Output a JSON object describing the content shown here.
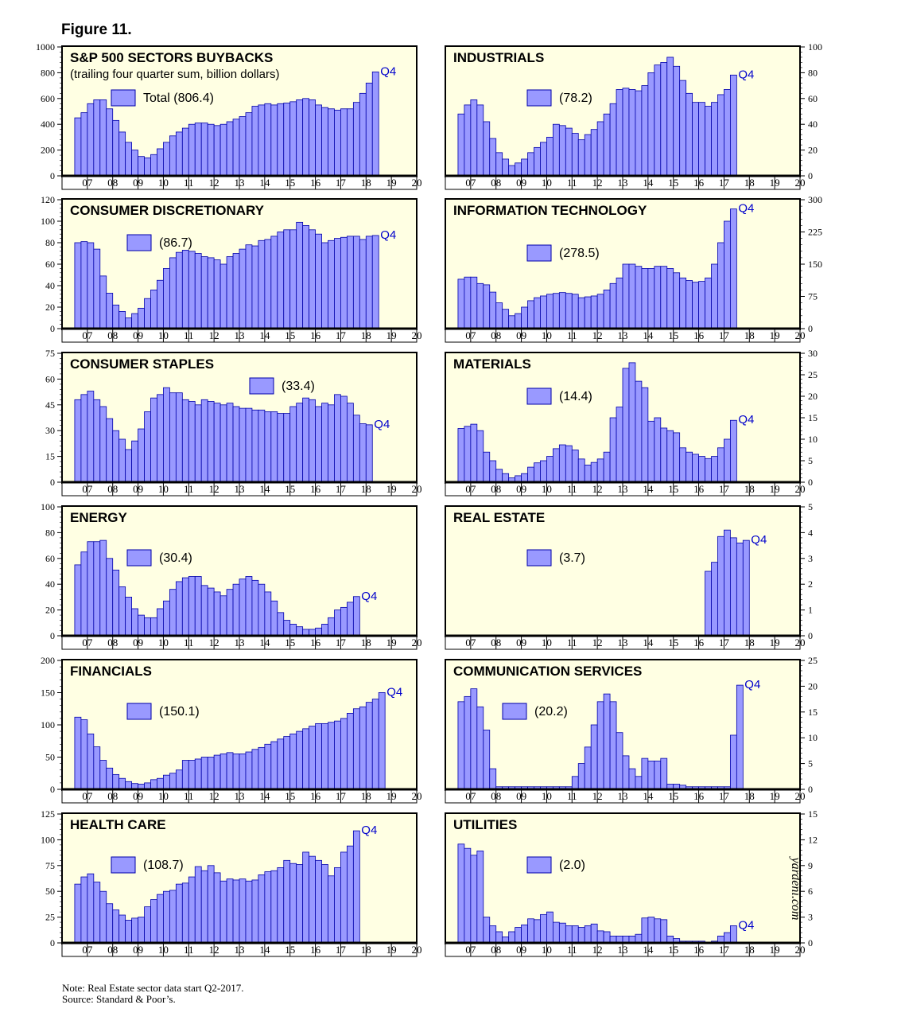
{
  "figure_label": "Figure 11.",
  "colors": {
    "panel_bg": "#ffffe3",
    "bar_fill": "#9999ff",
    "bar_stroke": "#0000aa",
    "q4_text": "#0000cc",
    "frame": "#000000"
  },
  "x_tick_labels": [
    "07",
    "08",
    "09",
    "10",
    "11",
    "12",
    "13",
    "14",
    "15",
    "16",
    "17",
    "18",
    "19",
    "20"
  ],
  "watermark": "yardeni.com",
  "chart_data": [
    {
      "type": "bar",
      "title": "S&P 500 SECTORS BUYBACKS",
      "subtitle": "(trailing four quarter sum, billion dollars)",
      "legend": "Total (806.4)",
      "annotation": "Q4",
      "axis_side": "left",
      "ylim": [
        0,
        1000
      ],
      "yticks": [
        0,
        200,
        400,
        600,
        800,
        1000
      ],
      "x_range": [
        "2006",
        "2020"
      ],
      "start": "2006Q1",
      "values": [
        0,
        0,
        450,
        490,
        560,
        590,
        590,
        520,
        430,
        340,
        260,
        200,
        150,
        140,
        165,
        210,
        260,
        310,
        340,
        370,
        400,
        410,
        410,
        400,
        390,
        400,
        420,
        440,
        460,
        490,
        540,
        550,
        560,
        550,
        560,
        565,
        575,
        590,
        600,
        590,
        550,
        530,
        520,
        510,
        520,
        520,
        570,
        640,
        720,
        806.4
      ]
    },
    {
      "type": "bar",
      "title": "INDUSTRIALS",
      "legend": "(78.2)",
      "annotation": "Q4",
      "axis_side": "right",
      "ylim": [
        0,
        100
      ],
      "yticks": [
        0,
        20,
        40,
        60,
        80,
        100
      ],
      "x_range": [
        "2006",
        "2020"
      ],
      "start": "2006Q1",
      "values": [
        0,
        0,
        48,
        55,
        59,
        55,
        42,
        29,
        18,
        13,
        8,
        10,
        13,
        18,
        22,
        26,
        30,
        40,
        39,
        37,
        33,
        28,
        32,
        36,
        42,
        48,
        56,
        67,
        68,
        67,
        66,
        70,
        80,
        86,
        88,
        92,
        85,
        74,
        64,
        57,
        57,
        54,
        57,
        63,
        67,
        78.2
      ]
    },
    {
      "type": "bar",
      "title": "CONSUMER DISCRETIONARY",
      "legend": "(86.7)",
      "annotation": "Q4",
      "axis_side": "left",
      "ylim": [
        0,
        120
      ],
      "yticks": [
        0,
        20,
        40,
        60,
        80,
        100,
        120
      ],
      "x_range": [
        "2006",
        "2020"
      ],
      "start": "2006Q1",
      "values": [
        0,
        0,
        80,
        81,
        80,
        74,
        49,
        33,
        22,
        16,
        10,
        14,
        19,
        28,
        36,
        45,
        56,
        66,
        71,
        73,
        72,
        70,
        67,
        66,
        64,
        60,
        67,
        70,
        74,
        78,
        77,
        82,
        83,
        86,
        90,
        92,
        92,
        99,
        96,
        92,
        88,
        80,
        82,
        84,
        85,
        86,
        86,
        83,
        86,
        86.7
      ]
    },
    {
      "type": "bar",
      "title": "INFORMATION TECHNOLOGY",
      "legend": "(278.5)",
      "annotation": "Q4",
      "axis_side": "right",
      "ylim": [
        0,
        300
      ],
      "yticks": [
        0,
        75,
        150,
        225,
        300
      ],
      "x_range": [
        "2006",
        "2020"
      ],
      "start": "2006Q1",
      "values": [
        0,
        0,
        115,
        120,
        120,
        105,
        102,
        85,
        60,
        45,
        30,
        35,
        50,
        65,
        72,
        76,
        80,
        82,
        84,
        82,
        80,
        72,
        74,
        76,
        80,
        90,
        105,
        118,
        150,
        150,
        145,
        140,
        140,
        145,
        145,
        140,
        130,
        118,
        112,
        108,
        110,
        118,
        150,
        200,
        250,
        278.5
      ]
    },
    {
      "type": "bar",
      "title": "CONSUMER STAPLES",
      "legend": "(33.4)",
      "annotation": "Q4",
      "axis_side": "left",
      "ylim": [
        0,
        75
      ],
      "yticks": [
        0,
        15,
        30,
        45,
        60,
        75
      ],
      "x_range": [
        "2006",
        "2020"
      ],
      "start": "2006Q1",
      "values": [
        0,
        0,
        48,
        51,
        53,
        48,
        44,
        37,
        30,
        25,
        19,
        24,
        31,
        41,
        49,
        51,
        55,
        52,
        52,
        48,
        47,
        45,
        48,
        47,
        46,
        45,
        46,
        44,
        43,
        43,
        42,
        42,
        41,
        41,
        40,
        40,
        44,
        46,
        49,
        48,
        44,
        46,
        45,
        51,
        50,
        46,
        39,
        34,
        33.4
      ]
    },
    {
      "type": "bar",
      "title": "MATERIALS",
      "legend": "(14.4)",
      "annotation": "Q4",
      "axis_side": "right",
      "ylim": [
        0,
        30
      ],
      "yticks": [
        0,
        5,
        10,
        15,
        20,
        25,
        30
      ],
      "x_range": [
        "2006",
        "2020"
      ],
      "start": "2006Q1",
      "values": [
        0,
        0,
        12.5,
        13,
        13.5,
        12,
        7,
        5,
        3,
        2,
        1,
        1.5,
        2,
        3.5,
        4.5,
        5,
        6,
        7.8,
        8.7,
        8.5,
        7.5,
        5.4,
        4,
        4.6,
        5.4,
        7,
        15,
        17.5,
        26.5,
        27.8,
        23.5,
        22,
        14.2,
        15,
        12.6,
        12,
        11.5,
        8,
        7,
        6.5,
        6,
        5.5,
        6,
        8,
        10,
        14.4
      ]
    },
    {
      "type": "bar",
      "title": "ENERGY",
      "legend": "(30.4)",
      "annotation": "Q4",
      "axis_side": "left",
      "ylim": [
        0,
        100
      ],
      "yticks": [
        0,
        20,
        40,
        60,
        80,
        100
      ],
      "x_range": [
        "2006",
        "2020"
      ],
      "start": "2006Q1",
      "values": [
        0,
        0,
        55,
        65,
        73,
        73,
        74,
        60,
        51,
        38,
        30,
        21,
        16,
        14,
        14,
        21,
        27,
        36,
        42,
        45,
        46,
        46,
        39,
        37,
        34,
        31,
        36,
        40,
        44,
        46,
        43,
        40,
        34,
        27,
        18,
        12,
        9,
        7,
        5,
        5,
        6,
        9,
        14,
        20,
        22,
        26,
        30.4
      ]
    },
    {
      "type": "bar",
      "title": "REAL ESTATE",
      "legend": "(3.7)",
      "annotation": "Q4",
      "axis_side": "right",
      "ylim": [
        0,
        5
      ],
      "yticks": [
        0,
        1,
        2,
        3,
        4,
        5
      ],
      "x_range": [
        "2006",
        "2020"
      ],
      "start": "2006Q1",
      "values": [
        null,
        null,
        null,
        null,
        null,
        null,
        null,
        null,
        null,
        null,
        null,
        null,
        null,
        null,
        null,
        null,
        null,
        null,
        null,
        null,
        null,
        null,
        null,
        null,
        null,
        null,
        null,
        null,
        null,
        null,
        null,
        null,
        null,
        null,
        null,
        null,
        null,
        null,
        null,
        null,
        null,
        2.5,
        2.85,
        3.85,
        4.1,
        3.8,
        3.6,
        3.7
      ]
    },
    {
      "type": "bar",
      "title": "FINANCIALS",
      "legend": "(150.1)",
      "annotation": "Q4",
      "axis_side": "left",
      "ylim": [
        0,
        200
      ],
      "yticks": [
        0,
        50,
        100,
        150,
        200
      ],
      "x_range": [
        "2006",
        "2020"
      ],
      "start": "2006Q1",
      "values": [
        0,
        0,
        112,
        108,
        86,
        66,
        45,
        33,
        23,
        17,
        12,
        9,
        8,
        10,
        15,
        17,
        22,
        25,
        30,
        45,
        45,
        47,
        50,
        50,
        53,
        55,
        57,
        55,
        55,
        58,
        62,
        65,
        70,
        74,
        78,
        82,
        86,
        90,
        94,
        98,
        102,
        102,
        104,
        106,
        110,
        118,
        125,
        128,
        135,
        140,
        150.1
      ]
    },
    {
      "type": "bar",
      "title": "COMMUNICATION SERVICES",
      "legend": "(20.2)",
      "annotation": "Q4",
      "axis_side": "right",
      "ylim": [
        0,
        25
      ],
      "yticks": [
        0,
        5,
        10,
        15,
        20,
        25
      ],
      "x_range": [
        "2006",
        "2020"
      ],
      "start": "2006Q1",
      "values": [
        0,
        0,
        17,
        18,
        19.5,
        16,
        11.5,
        4,
        0.5,
        0.5,
        0.5,
        0.5,
        0.5,
        0.5,
        0.5,
        0.5,
        0.5,
        0.5,
        0.5,
        0.5,
        2.5,
        5,
        8.2,
        12.5,
        17,
        18.5,
        17,
        11,
        6.5,
        4,
        2.5,
        6,
        5.5,
        5.5,
        6,
        1,
        1,
        0.8,
        0.5,
        0.5,
        0.5,
        0.5,
        0.5,
        0.5,
        0.5,
        10.5,
        20.2
      ]
    },
    {
      "type": "bar",
      "title": "HEALTH CARE",
      "legend": "(108.7)",
      "annotation": "Q4",
      "axis_side": "left",
      "ylim": [
        0,
        125
      ],
      "yticks": [
        0,
        25,
        50,
        75,
        100,
        125
      ],
      "x_range": [
        "2006",
        "2020"
      ],
      "start": "2006Q1",
      "values": [
        0,
        0,
        57,
        64,
        67,
        59,
        50,
        38,
        32,
        27,
        22,
        24,
        25,
        35,
        42,
        47,
        50,
        51,
        57,
        58,
        64,
        74,
        70,
        75,
        68,
        60,
        62,
        61,
        62,
        60,
        61,
        66,
        69,
        70,
        73,
        80,
        77,
        76,
        88,
        84,
        80,
        76,
        65,
        73,
        88,
        94,
        108.7
      ]
    },
    {
      "type": "bar",
      "title": "UTILITIES",
      "legend": "(2.0)",
      "annotation": "Q4",
      "axis_side": "right",
      "ylim": [
        0,
        15
      ],
      "yticks": [
        0,
        3,
        6,
        9,
        12,
        15
      ],
      "x_range": [
        "2006",
        "2020"
      ],
      "start": "2006Q1",
      "values": [
        0,
        0,
        11.5,
        11,
        10.2,
        10.7,
        3,
        2,
        1.3,
        0.7,
        1.3,
        1.8,
        2.1,
        2.8,
        2.7,
        3.3,
        3.6,
        2.4,
        2.3,
        2,
        2,
        1.8,
        2,
        2.2,
        1.4,
        1.3,
        0.8,
        0.8,
        0.8,
        0.8,
        1,
        2.9,
        3,
        2.8,
        2.7,
        0.8,
        0.5,
        0.2,
        0.2,
        0.2,
        0.2,
        0.1,
        0.2,
        0.8,
        1.2,
        2
      ]
    }
  ],
  "footnotes": {
    "note": "Note: Real Estate sector data start Q2-2017.",
    "source": "Source: Standard & Poor’s."
  }
}
